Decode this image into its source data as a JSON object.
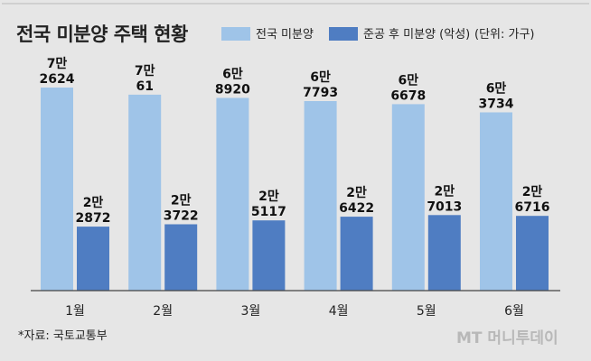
{
  "chart_data": {
    "type": "bar",
    "title": "전국 미분양 주택 현황",
    "unit": "(단위: 가구)",
    "categories": [
      "1월",
      "2월",
      "3월",
      "4월",
      "5월",
      "6월"
    ],
    "series": [
      {
        "name": "전국 미분양",
        "color": "#9fc4e8",
        "values": [
          72624,
          70061,
          68920,
          67793,
          66678,
          63734
        ],
        "labels": [
          [
            "7만",
            "2624"
          ],
          [
            "7만",
            "61"
          ],
          [
            "6만",
            "8920"
          ],
          [
            "6만",
            "7793"
          ],
          [
            "6만",
            "6678"
          ],
          [
            "6만",
            "3734"
          ]
        ]
      },
      {
        "name": "준공 후 미분양 (악성)",
        "color": "#4f7dc2",
        "values": [
          22872,
          23722,
          25117,
          26422,
          27013,
          26716
        ],
        "labels": [
          [
            "2만",
            "2872"
          ],
          [
            "2만",
            "3722"
          ],
          [
            "2만",
            "5117"
          ],
          [
            "2만",
            "6422"
          ],
          [
            "2만",
            "7013"
          ],
          [
            "2만",
            "6716"
          ]
        ]
      }
    ],
    "source": "*자료: 국토교통부",
    "legend_position": "top",
    "grid": false
  },
  "watermark": "MT 머니투데이"
}
